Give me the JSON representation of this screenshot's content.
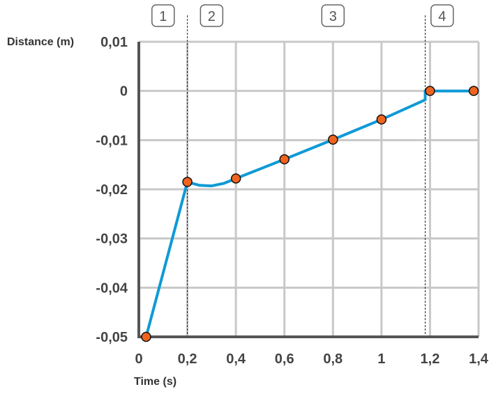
{
  "chart_data": {
    "type": "line",
    "xlabel": "Time (s)",
    "ylabel": "Distance (m)",
    "xlim": [
      0,
      1.4
    ],
    "ylim": [
      -0.05,
      0.01
    ],
    "x_ticks": [
      0,
      0.2,
      0.4,
      0.6,
      0.8,
      1.0,
      1.2,
      1.4
    ],
    "x_tick_labels": [
      "0",
      "0,2",
      "0,4",
      "0,6",
      "0,8",
      "1",
      "1,2",
      "1,4"
    ],
    "y_ticks": [
      0.01,
      0,
      -0.01,
      -0.02,
      -0.03,
      -0.04,
      -0.05
    ],
    "y_tick_labels": [
      "0,01",
      "0",
      "-0,01",
      "-0,02",
      "-0,03",
      "-0,04",
      "-0,05"
    ],
    "grid": true,
    "series": [
      {
        "line": [
          [
            0.03,
            -0.05
          ],
          [
            0.2,
            -0.0185
          ],
          [
            0.25,
            -0.0192
          ],
          [
            0.3,
            -0.0193
          ],
          [
            0.35,
            -0.0188
          ],
          [
            0.4,
            -0.0178
          ],
          [
            0.6,
            -0.0139
          ],
          [
            0.8,
            -0.0099
          ],
          [
            1.0,
            -0.0058
          ],
          [
            1.18,
            -0.0018
          ],
          [
            1.18,
            0
          ],
          [
            1.2,
            0
          ],
          [
            1.38,
            0
          ]
        ],
        "points": [
          [
            0.03,
            -0.05
          ],
          [
            0.2,
            -0.0185
          ],
          [
            0.4,
            -0.0178
          ],
          [
            0.6,
            -0.0139
          ],
          [
            0.8,
            -0.0099
          ],
          [
            1.0,
            -0.0058
          ],
          [
            1.2,
            0
          ],
          [
            1.38,
            0
          ]
        ]
      }
    ],
    "phase_dividers": [
      0.2,
      1.18
    ],
    "phases": [
      {
        "label": "1",
        "x": 0.1
      },
      {
        "label": "2",
        "x": 0.3
      },
      {
        "label": "3",
        "x": 0.8
      },
      {
        "label": "4",
        "x": 1.25
      }
    ]
  },
  "colors": {
    "line": "#0f9ad6",
    "marker_fill": "#f0641e",
    "marker_stroke": "#111111",
    "grid": "#c8c8c8",
    "axis": "#555555"
  }
}
